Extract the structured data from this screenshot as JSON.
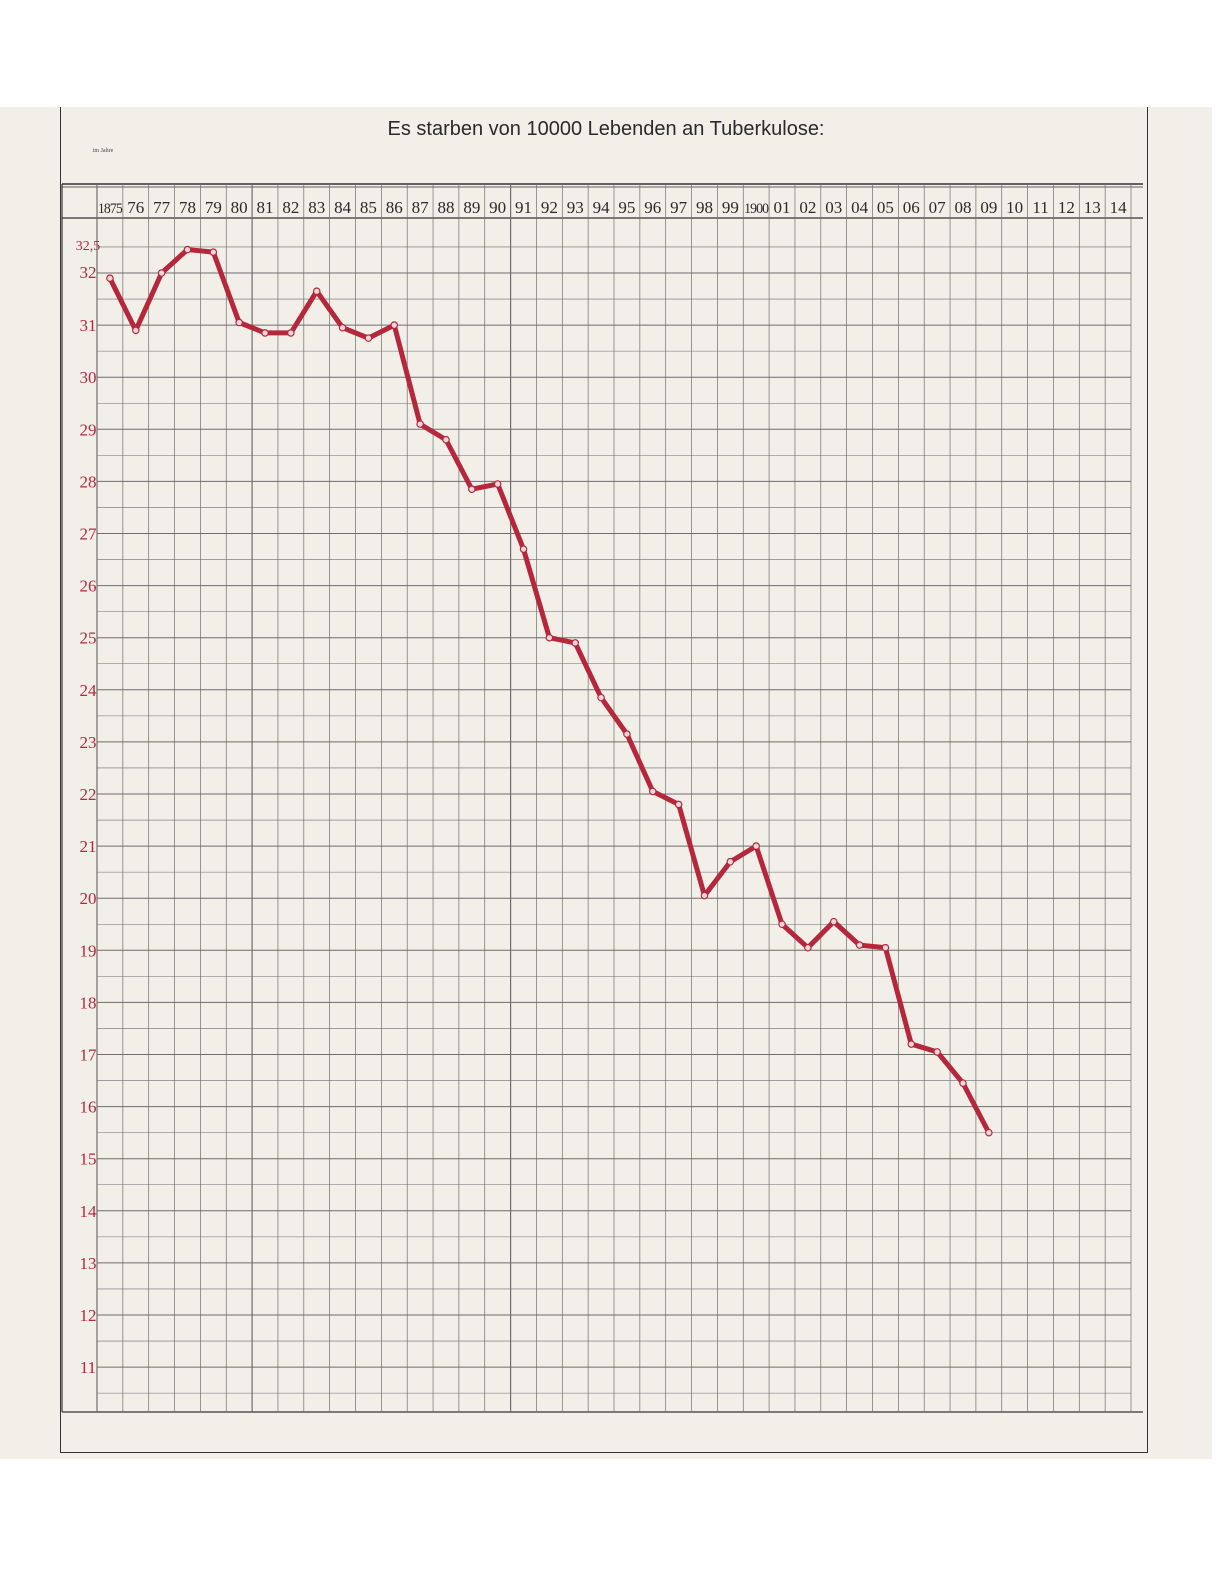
{
  "title": "Es starben von 10000 Lebenden an Tuberkulose:",
  "year_caption": "im Jahre",
  "footer_left": "",
  "footer_right": "",
  "colors": {
    "paper": "#f2efe9",
    "grid": "#6e6e6e",
    "line": "#b5283c",
    "tick_text": "#b5283c",
    "year_text": "#2a2a2a"
  },
  "chart_data": {
    "type": "line",
    "title": "Es starben von 10000 Lebenden an Tuberkulose:",
    "x_tick_labels": [
      "1875",
      "76",
      "77",
      "78",
      "79",
      "80",
      "81",
      "82",
      "83",
      "84",
      "85",
      "86",
      "87",
      "88",
      "89",
      "90",
      "91",
      "92",
      "93",
      "94",
      "95",
      "96",
      "97",
      "98",
      "99",
      "1900",
      "01",
      "02",
      "03",
      "04",
      "05",
      "06",
      "07",
      "08",
      "09",
      "10",
      "11",
      "12",
      "13",
      "14"
    ],
    "y_tick_labels": [
      "32,5",
      "32",
      "31",
      "30",
      "29",
      "28",
      "27",
      "26",
      "25",
      "24",
      "23",
      "22",
      "21",
      "20",
      "19",
      "18",
      "17",
      "16",
      "15",
      "14",
      "13",
      "12",
      "11"
    ],
    "y_ticks": [
      32.5,
      32,
      31,
      30,
      29,
      28,
      27,
      26,
      25,
      24,
      23,
      22,
      21,
      20,
      19,
      18,
      17,
      16,
      15,
      14,
      13,
      12,
      11
    ],
    "xlim": [
      1875,
      1914
    ],
    "ylim": [
      10.5,
      32.8
    ],
    "grid": true,
    "series": [
      {
        "x": [
          1875,
          1876,
          1877,
          1878,
          1879,
          1880,
          1881,
          1882,
          1883,
          1884,
          1885,
          1886,
          1887,
          1888,
          1889,
          1890,
          1891,
          1892,
          1893,
          1894,
          1895,
          1896,
          1897,
          1898,
          1899,
          1900,
          1901,
          1902,
          1903,
          1904,
          1905,
          1906,
          1907,
          1908,
          1909
        ],
        "values": [
          31.9,
          30.9,
          32.0,
          32.45,
          32.4,
          31.05,
          30.85,
          30.85,
          31.65,
          30.95,
          30.75,
          31.0,
          29.1,
          28.8,
          27.85,
          27.95,
          26.7,
          25.0,
          24.9,
          23.85,
          23.15,
          22.05,
          21.8,
          20.05,
          20.7,
          21.0,
          19.5,
          19.05,
          19.55,
          19.1,
          19.05,
          17.2,
          17.05,
          16.45,
          15.5
        ]
      }
    ]
  }
}
